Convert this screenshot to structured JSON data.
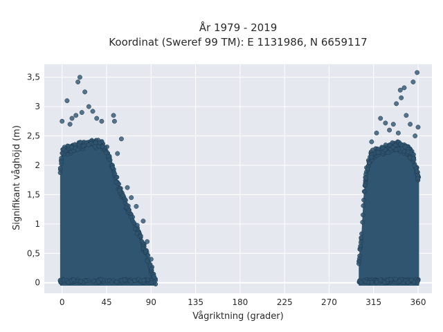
{
  "chart_data": {
    "type": "scatter",
    "title_line1": "År 1979 - 2019",
    "title_line2": "Koordinat (Sweref 99 TM): E 1131986, N 6659117",
    "xlabel": "Vågriktning (grader)",
    "ylabel": "Signifikant våghöjd (m)",
    "xlim": [
      -18,
      374
    ],
    "ylim": [
      -0.18,
      3.72
    ],
    "x_ticks": [
      0,
      45,
      90,
      135,
      180,
      225,
      270,
      315,
      360
    ],
    "x_tick_labels": [
      "0",
      "45",
      "90",
      "135",
      "180",
      "225",
      "270",
      "315",
      "360"
    ],
    "y_ticks": [
      0,
      0.5,
      1,
      1.5,
      2,
      2.5,
      3,
      3.5
    ],
    "y_tick_labels": [
      "0",
      "0,5",
      "1",
      "1,5",
      "2",
      "2,5",
      "3",
      "3,5"
    ],
    "grid": true,
    "colors": {
      "background": "#e5e8ef",
      "marker": "#2f5570",
      "marker_edge": "#1e3a4f"
    },
    "envelope_segments": [
      {
        "x_range": [
          -2,
          95
        ],
        "upper_boundary": [
          [
            -2,
            2.0
          ],
          [
            0,
            2.3
          ],
          [
            10,
            2.35
          ],
          [
            20,
            2.4
          ],
          [
            30,
            2.45
          ],
          [
            40,
            2.4
          ],
          [
            45,
            2.3
          ],
          [
            50,
            2.1
          ],
          [
            55,
            1.8
          ],
          [
            60,
            1.6
          ],
          [
            65,
            1.4
          ],
          [
            70,
            1.2
          ],
          [
            75,
            1.0
          ],
          [
            80,
            0.8
          ],
          [
            85,
            0.55
          ],
          [
            90,
            0.3
          ],
          [
            95,
            0.05
          ]
        ]
      },
      {
        "x_range": [
          300,
          361
        ],
        "upper_boundary": [
          [
            300,
            0.4
          ],
          [
            303,
            0.9
          ],
          [
            305,
            1.5
          ],
          [
            308,
            2.0
          ],
          [
            312,
            2.2
          ],
          [
            320,
            2.3
          ],
          [
            330,
            2.35
          ],
          [
            340,
            2.4
          ],
          [
            350,
            2.3
          ],
          [
            355,
            2.2
          ],
          [
            358,
            2.0
          ],
          [
            361,
            1.8
          ]
        ]
      }
    ],
    "outliers": [
      {
        "x": 18,
        "y": 3.5
      },
      {
        "x": 16,
        "y": 3.42
      },
      {
        "x": 5,
        "y": 3.1
      },
      {
        "x": 23,
        "y": 3.25
      },
      {
        "x": 27,
        "y": 3.0
      },
      {
        "x": 20,
        "y": 2.9
      },
      {
        "x": 14,
        "y": 2.85
      },
      {
        "x": 10,
        "y": 2.8
      },
      {
        "x": 31,
        "y": 2.92
      },
      {
        "x": 35,
        "y": 2.8
      },
      {
        "x": 40,
        "y": 2.75
      },
      {
        "x": 0,
        "y": 2.75
      },
      {
        "x": 8,
        "y": 2.7
      },
      {
        "x": 52,
        "y": 2.85
      },
      {
        "x": 53,
        "y": 2.75
      },
      {
        "x": 60,
        "y": 2.45
      },
      {
        "x": 56,
        "y": 2.2
      },
      {
        "x": 66,
        "y": 1.62
      },
      {
        "x": 70,
        "y": 1.45
      },
      {
        "x": 75,
        "y": 1.3
      },
      {
        "x": 82,
        "y": 1.05
      },
      {
        "x": 86,
        "y": 0.7
      },
      {
        "x": 90,
        "y": 0.4
      },
      {
        "x": 93,
        "y": 0.1
      },
      {
        "x": 359,
        "y": 3.58
      },
      {
        "x": 355,
        "y": 3.42
      },
      {
        "x": 346,
        "y": 3.32
      },
      {
        "x": 342,
        "y": 3.28
      },
      {
        "x": 343,
        "y": 3.15
      },
      {
        "x": 338,
        "y": 3.05
      },
      {
        "x": 348,
        "y": 2.85
      },
      {
        "x": 335,
        "y": 2.7
      },
      {
        "x": 322,
        "y": 2.8
      },
      {
        "x": 327,
        "y": 2.72
      },
      {
        "x": 318,
        "y": 2.55
      },
      {
        "x": 331,
        "y": 2.6
      },
      {
        "x": 352,
        "y": 2.7
      },
      {
        "x": 357,
        "y": 2.5
      },
      {
        "x": 360,
        "y": 2.65
      },
      {
        "x": 313,
        "y": 2.4
      },
      {
        "x": 340,
        "y": 2.55
      }
    ]
  }
}
